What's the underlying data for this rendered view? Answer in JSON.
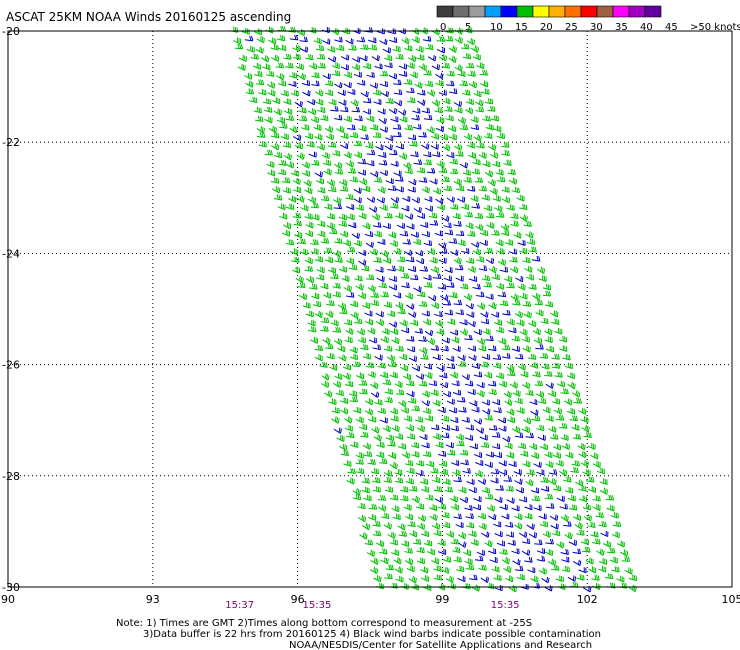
{
  "header": {
    "title": "ASCAT 25KM NOAA Winds 20160125 ascending"
  },
  "legend": {
    "bins": [
      {
        "color": "#3c3c3c"
      },
      {
        "color": "#6e6e6e"
      },
      {
        "color": "#9c9c9c"
      },
      {
        "color": "#00a0ff"
      },
      {
        "color": "#0000ff"
      },
      {
        "color": "#00c000"
      },
      {
        "color": "#ffff00"
      },
      {
        "color": "#ffb000"
      },
      {
        "color": "#ff7000"
      },
      {
        "color": "#ff0000"
      },
      {
        "color": "#a06040"
      },
      {
        "color": "#ff00ff"
      },
      {
        "color": "#a000c0"
      },
      {
        "color": "#6000a0"
      }
    ],
    "labels": [
      "0",
      "5",
      "10",
      "15",
      "20",
      "25",
      "30",
      "35",
      "40",
      "45",
      ">50 knots"
    ]
  },
  "chart_data": {
    "type": "scatter",
    "subtype": "wind-barb",
    "title": "ASCAT 25KM NOAA Winds 20160125 ascending",
    "xlim": [
      90,
      105
    ],
    "ylim": [
      -30,
      -20
    ],
    "x_ticks": [
      "90",
      "93",
      "96",
      "99",
      "102",
      "105"
    ],
    "y_ticks": [
      "-20",
      "-22",
      "-24",
      "-26",
      "-28",
      "-30"
    ],
    "grid": true,
    "swath_corners_lonlat": [
      [
        94.5,
        -20.0
      ],
      [
        99.6,
        -20.0
      ],
      [
        103.0,
        -30.0
      ],
      [
        97.5,
        -30.0
      ]
    ],
    "barb_colors": {
      "10-15 knots": "#0000c8",
      "15-20 knots": "#00c000"
    },
    "time_labels": [
      {
        "text": "15:37",
        "lon": 94.8
      },
      {
        "text": "15:35",
        "lon": 96.4
      },
      {
        "text": "15:35",
        "lon": 100.3
      }
    ],
    "time_color": "#800080"
  },
  "notes": {
    "line1": "Note: 1) Times are GMT 2)Times along bottom correspond to measurement at -25S",
    "line2": "3)Data buffer is 22 hrs from 20160125 4) Black wind barbs indicate possible contamination",
    "line3": "NOAA/NESDIS/Center for Satellite Applications and Research"
  }
}
